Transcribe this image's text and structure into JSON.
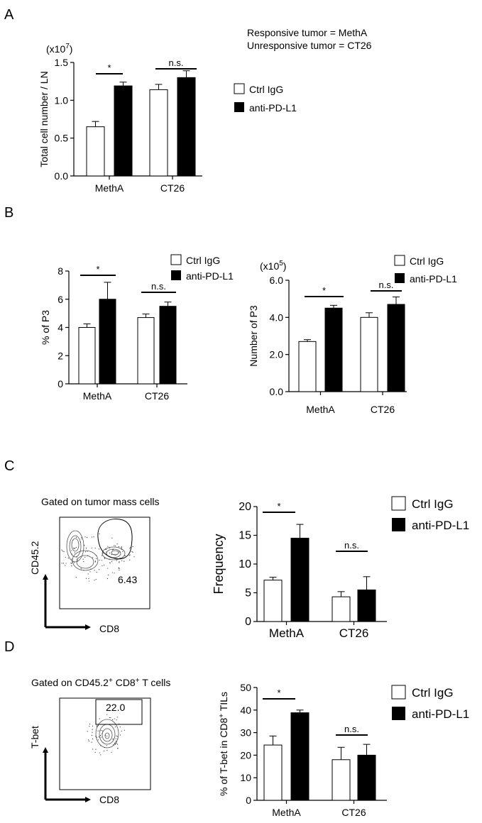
{
  "panel_labels": [
    "A",
    "B",
    "C",
    "D"
  ],
  "notes": {
    "responsive": "Responsive tumor = MethA",
    "unresponsive": "Unresponsive tumor = CT26"
  },
  "legend": {
    "ctrl": "Ctrl IgG",
    "anti": "anti-PD-L1"
  },
  "colors": {
    "ctrl": "#ffffff",
    "anti": "#000000"
  },
  "facs": {
    "c_title": "Gated on tumor mass cells",
    "c_ylabel": "CD45.2",
    "c_xlabel": "CD8",
    "c_value": "6.43",
    "d_title_prefix": "Gated on CD45.2",
    "d_title_sup1": "+",
    "d_title_mid": " CD8",
    "d_title_sup2": "+",
    "d_title_suffix": " T cells",
    "d_ylabel": "T-bet",
    "d_xlabel": "CD8",
    "d_value": "22.0"
  },
  "chart_data": [
    {
      "id": "A",
      "type": "bar",
      "categories": [
        "MethA",
        "CT26"
      ],
      "series": [
        {
          "name": "Ctrl IgG",
          "values": [
            0.65,
            1.14
          ],
          "errors": [
            0.07,
            0.07
          ]
        },
        {
          "name": "anti-PD-L1",
          "values": [
            1.19,
            1.3
          ],
          "errors": [
            0.05,
            0.09
          ]
        }
      ],
      "ylabel": "Total cell number / LN",
      "multiplier": "(x10",
      "multiplier_exp": "7",
      "multiplier_close": ")",
      "ylim": [
        0,
        1.5
      ],
      "yticks": [
        "0.0",
        "0.5",
        "1.0",
        "1.5"
      ],
      "significance": [
        "*",
        "n.s."
      ]
    },
    {
      "id": "B1",
      "type": "bar",
      "categories": [
        "MethA",
        "CT26"
      ],
      "series": [
        {
          "name": "Ctrl IgG",
          "values": [
            4.0,
            4.7
          ],
          "errors": [
            0.25,
            0.25
          ]
        },
        {
          "name": "anti-PD-L1",
          "values": [
            6.0,
            5.5
          ],
          "errors": [
            1.2,
            0.3
          ]
        }
      ],
      "ylabel": "% of P3",
      "ylim": [
        0,
        8
      ],
      "yticks": [
        "0",
        "2",
        "4",
        "6",
        "8"
      ],
      "significance": [
        "*",
        "n.s."
      ]
    },
    {
      "id": "B2",
      "type": "bar",
      "categories": [
        "MethA",
        "CT26"
      ],
      "series": [
        {
          "name": "Ctrl IgG",
          "values": [
            2.7,
            4.0
          ],
          "errors": [
            0.1,
            0.25
          ]
        },
        {
          "name": "anti-PD-L1",
          "values": [
            4.5,
            4.7
          ],
          "errors": [
            0.15,
            0.4
          ]
        }
      ],
      "ylabel": "Number of P3",
      "multiplier": "(x10",
      "multiplier_exp": "5",
      "multiplier_close": ")",
      "ylim": [
        0,
        6
      ],
      "yticks": [
        "0.0",
        "2.0",
        "4.0",
        "6.0"
      ],
      "significance": [
        "*",
        "n.s."
      ]
    },
    {
      "id": "C",
      "type": "bar",
      "categories": [
        "MethA",
        "CT26"
      ],
      "series": [
        {
          "name": "Ctrl IgG",
          "values": [
            7.2,
            4.3
          ],
          "errors": [
            0.5,
            0.9
          ]
        },
        {
          "name": "anti-PD-L1",
          "values": [
            14.5,
            5.5
          ],
          "errors": [
            2.4,
            2.3
          ]
        }
      ],
      "ylabel": "Frequency",
      "ylim": [
        0,
        20
      ],
      "yticks": [
        "0",
        "5",
        "10",
        "15",
        "20"
      ],
      "significance": [
        "*",
        "n.s."
      ]
    },
    {
      "id": "D",
      "type": "bar",
      "categories": [
        "MethA",
        "CT26"
      ],
      "series": [
        {
          "name": "Ctrl IgG",
          "values": [
            24.5,
            18.0
          ],
          "errors": [
            4.0,
            5.5
          ]
        },
        {
          "name": "anti-PD-L1",
          "values": [
            38.8,
            20.0
          ],
          "errors": [
            1.2,
            4.8
          ]
        }
      ],
      "ylabel_prefix": "% of T-bet in CD8",
      "ylabel_sup": "+",
      "ylabel_suffix": " TILs",
      "ylim": [
        0,
        50
      ],
      "yticks": [
        "0",
        "10",
        "20",
        "30",
        "40",
        "50"
      ],
      "significance": [
        "*",
        "n.s."
      ]
    }
  ]
}
